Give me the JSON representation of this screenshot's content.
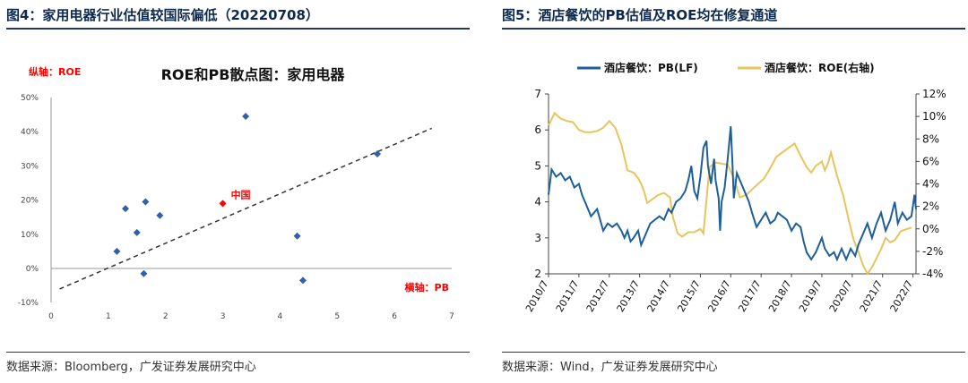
{
  "left": {
    "fig_title": "图4：家用电器行业估值较国际偏低（20220708）",
    "source": "数据来源：Bloomberg，广发证券发展研究中心"
  },
  "right": {
    "fig_title": "图5：酒店餐饮的PB估值及ROE均在修复通道",
    "source": "数据来源：Wind，广发证券发展研究中心"
  },
  "chart_data": [
    {
      "type": "scatter",
      "title": "ROE和PB散点图：家用电器",
      "xlabel": "横轴：PB",
      "ylabel": "纵轴：ROE",
      "xlim": [
        0,
        7
      ],
      "ylim": [
        -10,
        50
      ],
      "x_ticks": [
        "0",
        "1",
        "2",
        "3",
        "4",
        "5",
        "6",
        "7"
      ],
      "y_ticks": [
        "-10%",
        "0%",
        "10%",
        "20%",
        "30%",
        "40%",
        "50%"
      ],
      "grid": false,
      "points": [
        {
          "x": 1.15,
          "y": 5
        },
        {
          "x": 1.3,
          "y": 17.5
        },
        {
          "x": 1.5,
          "y": 10.5
        },
        {
          "x": 1.62,
          "y": -1.5
        },
        {
          "x": 1.65,
          "y": 19.5
        },
        {
          "x": 1.9,
          "y": 15.5
        },
        {
          "x": 3.4,
          "y": 44.5
        },
        {
          "x": 4.3,
          "y": 9.5
        },
        {
          "x": 4.4,
          "y": -3.5
        },
        {
          "x": 5.7,
          "y": 33.5
        }
      ],
      "highlight": {
        "x": 3.0,
        "y": 19,
        "label": "中国",
        "color": "#ff0000"
      },
      "trendline": {
        "from": [
          0.15,
          -6
        ],
        "to": [
          6.65,
          41
        ]
      },
      "colors": {
        "points": "#2e62a8",
        "trend": "#333333",
        "axis_label": "#ff0000"
      }
    },
    {
      "type": "line",
      "x_ticks": [
        "2010/7",
        "2011/7",
        "2012/7",
        "2013/7",
        "2014/7",
        "2015/7",
        "2016/7",
        "2017/7",
        "2018/7",
        "2019/7",
        "2020/7",
        "2021/7",
        "2022/7"
      ],
      "xlim": [
        "2010/7",
        "2022/7"
      ],
      "ylim": [
        2,
        7
      ],
      "ylim_right": [
        -4,
        12
      ],
      "y_ticks": [
        "2",
        "3",
        "4",
        "5",
        "6",
        "7"
      ],
      "y_ticks_right": [
        "-4%",
        "-2%",
        "0%",
        "2%",
        "4%",
        "6%",
        "8%",
        "10%",
        "12%"
      ],
      "legend_position": "top",
      "grid": false,
      "series": [
        {
          "name": "酒店餐饮：PB(LF)",
          "axis": "left",
          "color": "#1f5f99",
          "points": [
            [
              2010.5,
              4.2
            ],
            [
              2010.6,
              4.9
            ],
            [
              2010.75,
              4.7
            ],
            [
              2010.9,
              4.8
            ],
            [
              2011.05,
              4.6
            ],
            [
              2011.2,
              4.7
            ],
            [
              2011.35,
              4.4
            ],
            [
              2011.5,
              4.5
            ],
            [
              2011.6,
              4.2
            ],
            [
              2011.75,
              3.9
            ],
            [
              2011.9,
              3.6
            ],
            [
              2012.0,
              3.7
            ],
            [
              2012.1,
              3.8
            ],
            [
              2012.2,
              3.5
            ],
            [
              2012.3,
              3.2
            ],
            [
              2012.45,
              3.4
            ],
            [
              2012.6,
              3.3
            ],
            [
              2012.75,
              3.4
            ],
            [
              2012.9,
              3.2
            ],
            [
              2013.0,
              3.0
            ],
            [
              2013.1,
              3.2
            ],
            [
              2013.2,
              2.9
            ],
            [
              2013.3,
              3.0
            ],
            [
              2013.45,
              3.2
            ],
            [
              2013.55,
              2.8
            ],
            [
              2013.7,
              3.1
            ],
            [
              2013.85,
              3.4
            ],
            [
              2014.0,
              3.5
            ],
            [
              2014.15,
              3.6
            ],
            [
              2014.3,
              3.5
            ],
            [
              2014.45,
              3.8
            ],
            [
              2014.55,
              3.7
            ],
            [
              2014.7,
              4.0
            ],
            [
              2014.85,
              4.1
            ],
            [
              2015.0,
              4.3
            ],
            [
              2015.1,
              4.6
            ],
            [
              2015.2,
              5.0
            ],
            [
              2015.3,
              4.3
            ],
            [
              2015.4,
              4.1
            ],
            [
              2015.5,
              4.7
            ],
            [
              2015.6,
              5.5
            ],
            [
              2015.7,
              5.7
            ],
            [
              2015.75,
              5.0
            ],
            [
              2015.85,
              4.5
            ],
            [
              2015.95,
              5.2
            ],
            [
              2016.0,
              4.6
            ],
            [
              2016.1,
              4.1
            ],
            [
              2016.15,
              3.2
            ],
            [
              2016.2,
              4.0
            ],
            [
              2016.3,
              4.4
            ],
            [
              2016.4,
              5.2
            ],
            [
              2016.5,
              6.1
            ],
            [
              2016.55,
              5.2
            ],
            [
              2016.6,
              4.1
            ],
            [
              2016.7,
              4.8
            ],
            [
              2016.8,
              4.6
            ],
            [
              2016.95,
              4.3
            ],
            [
              2017.1,
              4.0
            ],
            [
              2017.2,
              3.7
            ],
            [
              2017.35,
              3.3
            ],
            [
              2017.5,
              3.5
            ],
            [
              2017.65,
              3.7
            ],
            [
              2017.8,
              3.4
            ],
            [
              2017.95,
              3.5
            ],
            [
              2018.05,
              3.7
            ],
            [
              2018.2,
              3.6
            ],
            [
              2018.35,
              3.5
            ],
            [
              2018.5,
              3.2
            ],
            [
              2018.65,
              3.4
            ],
            [
              2018.8,
              3.3
            ],
            [
              2018.9,
              2.9
            ],
            [
              2019.0,
              2.6
            ],
            [
              2019.15,
              2.4
            ],
            [
              2019.3,
              2.6
            ],
            [
              2019.5,
              3.0
            ],
            [
              2019.6,
              2.7
            ],
            [
              2019.75,
              2.5
            ],
            [
              2019.9,
              2.6
            ],
            [
              2020.0,
              2.4
            ],
            [
              2020.15,
              2.7
            ],
            [
              2020.3,
              2.4
            ],
            [
              2020.45,
              2.7
            ],
            [
              2020.6,
              2.5
            ],
            [
              2020.7,
              2.8
            ],
            [
              2020.85,
              3.1
            ],
            [
              2021.0,
              3.4
            ],
            [
              2021.15,
              3.0
            ],
            [
              2021.3,
              3.4
            ],
            [
              2021.45,
              3.7
            ],
            [
              2021.6,
              3.2
            ],
            [
              2021.75,
              3.5
            ],
            [
              2021.9,
              4.0
            ],
            [
              2022.0,
              3.4
            ],
            [
              2022.15,
              3.7
            ],
            [
              2022.3,
              3.5
            ],
            [
              2022.45,
              3.6
            ],
            [
              2022.55,
              4.2
            ],
            [
              2022.6,
              3.8
            ]
          ]
        },
        {
          "name": "酒店餐饮：ROE(右轴)",
          "axis": "right",
          "color": "#e6c55c",
          "points": [
            [
              2010.5,
              9.2
            ],
            [
              2010.7,
              10.3
            ],
            [
              2010.9,
              9.8
            ],
            [
              2011.1,
              9.6
            ],
            [
              2011.3,
              9.5
            ],
            [
              2011.5,
              8.8
            ],
            [
              2011.7,
              8.6
            ],
            [
              2011.9,
              8.6
            ],
            [
              2012.1,
              8.7
            ],
            [
              2012.3,
              9.0
            ],
            [
              2012.5,
              9.6
            ],
            [
              2012.7,
              9.0
            ],
            [
              2012.9,
              7.5
            ],
            [
              2013.1,
              5.2
            ],
            [
              2013.3,
              5.0
            ],
            [
              2013.45,
              4.5
            ],
            [
              2013.55,
              4.0
            ],
            [
              2013.65,
              3.3
            ],
            [
              2013.75,
              2.3
            ],
            [
              2013.9,
              2.6
            ],
            [
              2014.1,
              3.0
            ],
            [
              2014.3,
              3.2
            ],
            [
              2014.5,
              2.8
            ],
            [
              2014.6,
              1.0
            ],
            [
              2014.75,
              -0.4
            ],
            [
              2014.9,
              -0.7
            ],
            [
              2015.1,
              -0.3
            ],
            [
              2015.3,
              -0.3
            ],
            [
              2015.5,
              0.0
            ],
            [
              2015.6,
              -0.4
            ],
            [
              2015.8,
              5.5
            ],
            [
              2016.0,
              5.9
            ],
            [
              2016.2,
              5.8
            ],
            [
              2016.4,
              5.7
            ],
            [
              2016.6,
              4.5
            ],
            [
              2016.8,
              2.8
            ],
            [
              2017.0,
              3.0
            ],
            [
              2017.2,
              3.5
            ],
            [
              2017.4,
              4.0
            ],
            [
              2017.6,
              4.5
            ],
            [
              2017.8,
              5.4
            ],
            [
              2018.0,
              6.4
            ],
            [
              2018.2,
              6.8
            ],
            [
              2018.4,
              7.2
            ],
            [
              2018.6,
              7.6
            ],
            [
              2018.8,
              6.5
            ],
            [
              2019.0,
              5.5
            ],
            [
              2019.15,
              5.0
            ],
            [
              2019.3,
              5.6
            ],
            [
              2019.5,
              6.0
            ],
            [
              2019.6,
              5.2
            ],
            [
              2019.7,
              5.8
            ],
            [
              2019.8,
              6.8
            ],
            [
              2020.0,
              4.7
            ],
            [
              2020.2,
              3.0
            ],
            [
              2020.4,
              0.6
            ],
            [
              2020.55,
              -1.0
            ],
            [
              2020.7,
              -2.0
            ],
            [
              2020.85,
              -3.2
            ],
            [
              2021.0,
              -4.0
            ],
            [
              2021.15,
              -3.4
            ],
            [
              2021.3,
              -2.6
            ],
            [
              2021.45,
              -1.8
            ],
            [
              2021.6,
              -0.8
            ],
            [
              2021.75,
              -1.2
            ],
            [
              2021.9,
              -1.0
            ],
            [
              2022.1,
              -0.2
            ],
            [
              2022.3,
              0.0
            ],
            [
              2022.45,
              0.1
            ]
          ]
        }
      ]
    }
  ]
}
